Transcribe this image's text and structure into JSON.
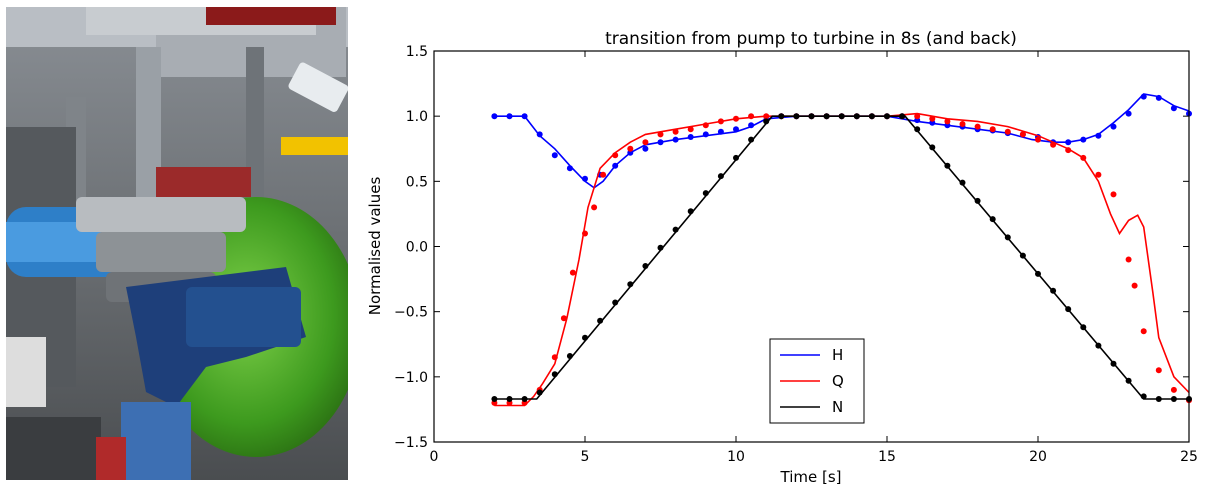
{
  "photo": {
    "subject": "test-rig-photo"
  },
  "chart_data": {
    "type": "line",
    "title": "transition from pump to turbine in 8s (and back)",
    "xlabel": "Time [s]",
    "ylabel": "Normalised values",
    "xlim": [
      0,
      25
    ],
    "ylim": [
      -1.5,
      1.5
    ],
    "xticks": [
      "0",
      "5",
      "10",
      "15",
      "20",
      "25"
    ],
    "yticks": [
      "−1.5",
      "−1.0",
      "−0.5",
      "0.0",
      "0.5",
      "1.0",
      "1.5"
    ],
    "grid": false,
    "legend": {
      "position": "lower-center",
      "entries": [
        "H",
        "Q",
        "N"
      ]
    },
    "colors": {
      "H": "#0000ff",
      "Q": "#ff0000",
      "N": "#000000"
    },
    "series": [
      {
        "name": "H",
        "kind": "line",
        "color": "#0000ff",
        "x": [
          2,
          3,
          3.5,
          4,
          4.5,
          5,
          5.3,
          5.6,
          6,
          6.5,
          7,
          8,
          9,
          10,
          10.5,
          11,
          12,
          13,
          14,
          15,
          16,
          17,
          18,
          19,
          19.8,
          20.5,
          21,
          21.5,
          22,
          22.5,
          23,
          23.5,
          24,
          24.5,
          25
        ],
        "y": [
          1.0,
          1.0,
          0.85,
          0.75,
          0.62,
          0.5,
          0.45,
          0.5,
          0.62,
          0.72,
          0.78,
          0.82,
          0.85,
          0.88,
          0.92,
          0.98,
          1.0,
          1.0,
          1.0,
          1.0,
          0.96,
          0.93,
          0.9,
          0.87,
          0.82,
          0.8,
          0.8,
          0.82,
          0.86,
          0.95,
          1.05,
          1.17,
          1.15,
          1.08,
          1.04
        ]
      },
      {
        "name": "H (measured)",
        "kind": "dots",
        "color": "#0000ff",
        "x": [
          2,
          2.5,
          3,
          3.5,
          4,
          4.5,
          5,
          5.5,
          6,
          6.5,
          7,
          7.5,
          8,
          8.5,
          9,
          9.5,
          10,
          10.5,
          11,
          11.5,
          12,
          12.5,
          13,
          13.5,
          14,
          14.5,
          15,
          15.5,
          16,
          16.5,
          17,
          17.5,
          18,
          18.5,
          19,
          19.5,
          20,
          20.5,
          21,
          21.5,
          22,
          22.5,
          23,
          23.5,
          24,
          24.5,
          25
        ],
        "y": [
          1.0,
          1.0,
          1.0,
          0.86,
          0.7,
          0.6,
          0.52,
          0.55,
          0.62,
          0.72,
          0.75,
          0.8,
          0.82,
          0.84,
          0.86,
          0.88,
          0.9,
          0.93,
          0.97,
          1.0,
          1.0,
          1.0,
          1.0,
          1.0,
          1.0,
          1.0,
          1.0,
          1.0,
          0.97,
          0.95,
          0.93,
          0.92,
          0.9,
          0.89,
          0.87,
          0.86,
          0.84,
          0.8,
          0.8,
          0.82,
          0.85,
          0.92,
          1.02,
          1.15,
          1.14,
          1.06,
          1.02
        ]
      },
      {
        "name": "Q",
        "kind": "line",
        "color": "#ff0000",
        "x": [
          2,
          3,
          3.3,
          3.6,
          4,
          4.4,
          4.8,
          5.1,
          5.5,
          6,
          6.5,
          7,
          8,
          9,
          10,
          11,
          12,
          13,
          14,
          15,
          16,
          17,
          18,
          19,
          20,
          20.5,
          21,
          21.5,
          22,
          22.4,
          22.7,
          23,
          23.3,
          23.5,
          23.8,
          24,
          24.5,
          25
        ],
        "y": [
          -1.22,
          -1.22,
          -1.15,
          -1.05,
          -0.9,
          -0.55,
          -0.1,
          0.3,
          0.6,
          0.72,
          0.8,
          0.86,
          0.9,
          0.94,
          0.98,
          1.0,
          1.0,
          1.0,
          1.0,
          1.0,
          1.02,
          0.98,
          0.96,
          0.92,
          0.85,
          0.8,
          0.75,
          0.68,
          0.5,
          0.25,
          0.1,
          0.2,
          0.24,
          0.15,
          -0.35,
          -0.7,
          -1.0,
          -1.12
        ]
      },
      {
        "name": "Q (measured)",
        "kind": "dots",
        "color": "#ff0000",
        "x": [
          2,
          2.5,
          3,
          3.5,
          4,
          4.3,
          4.6,
          5,
          5.3,
          5.6,
          6,
          6.5,
          7,
          7.5,
          8,
          8.5,
          9,
          9.5,
          10,
          10.5,
          11,
          11.5,
          12,
          12.5,
          13,
          13.5,
          14,
          14.5,
          15,
          15.5,
          16,
          16.5,
          17,
          17.5,
          18,
          18.5,
          19,
          19.5,
          20,
          20.5,
          21,
          21.5,
          22,
          22.5,
          23,
          23.2,
          23.5,
          24,
          24.5,
          25
        ],
        "y": [
          -1.2,
          -1.2,
          -1.2,
          -1.1,
          -0.85,
          -0.55,
          -0.2,
          0.1,
          0.3,
          0.55,
          0.7,
          0.75,
          0.8,
          0.86,
          0.88,
          0.9,
          0.93,
          0.96,
          0.98,
          1.0,
          1.0,
          1.0,
          1.0,
          1.0,
          1.0,
          1.0,
          1.0,
          1.0,
          1.0,
          1.0,
          1.0,
          0.98,
          0.96,
          0.94,
          0.92,
          0.9,
          0.88,
          0.86,
          0.82,
          0.78,
          0.74,
          0.68,
          0.55,
          0.4,
          -0.1,
          -0.3,
          -0.65,
          -0.95,
          -1.1,
          -1.18
        ]
      },
      {
        "name": "N",
        "kind": "line",
        "color": "#000000",
        "x": [
          2,
          3.4,
          11.2,
          15.6,
          23.5,
          25
        ],
        "y": [
          -1.17,
          -1.17,
          1.0,
          1.0,
          -1.17,
          -1.17
        ]
      },
      {
        "name": "N (measured)",
        "kind": "dots",
        "color": "#000000",
        "x": [
          2,
          2.5,
          3,
          3.5,
          4,
          4.5,
          5,
          5.5,
          6,
          6.5,
          7,
          7.5,
          8,
          8.5,
          9,
          9.5,
          10,
          10.5,
          11,
          11.5,
          12,
          12.5,
          13,
          13.5,
          14,
          14.5,
          15,
          15.5,
          16,
          16.5,
          17,
          17.5,
          18,
          18.5,
          19,
          19.5,
          20,
          20.5,
          21,
          21.5,
          22,
          22.5,
          23,
          23.5,
          24,
          24.5,
          25
        ],
        "y": [
          -1.17,
          -1.17,
          -1.17,
          -1.12,
          -0.98,
          -0.84,
          -0.7,
          -0.57,
          -0.43,
          -0.29,
          -0.15,
          -0.01,
          0.13,
          0.27,
          0.41,
          0.54,
          0.68,
          0.82,
          0.96,
          1.0,
          1.0,
          1.0,
          1.0,
          1.0,
          1.0,
          1.0,
          1.0,
          1.0,
          0.9,
          0.76,
          0.62,
          0.49,
          0.35,
          0.21,
          0.07,
          -0.07,
          -0.21,
          -0.34,
          -0.48,
          -0.62,
          -0.76,
          -0.9,
          -1.03,
          -1.15,
          -1.17,
          -1.17,
          -1.17
        ]
      }
    ]
  }
}
